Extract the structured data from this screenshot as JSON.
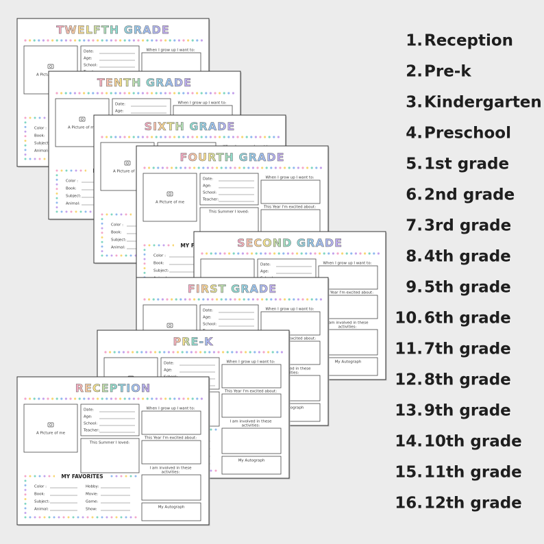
{
  "sheets": [
    {
      "title": "TWELFTH GRADE"
    },
    {
      "title": "TENTH GRADE"
    },
    {
      "title": "SIXTH GRADE"
    },
    {
      "title": "FOURTH GRADE"
    },
    {
      "title": "SECOND GRADE"
    },
    {
      "title": "FIRST GRADE"
    },
    {
      "title": "PRE-K"
    },
    {
      "title": "RECEPTION"
    }
  ],
  "sheet_labels": {
    "picture": "A Picture of me",
    "info": [
      "Date:",
      "Age:",
      "School:",
      "Teacher:"
    ],
    "summer": "This Summer I loved:",
    "grow_up": "When I grow up I want to:",
    "this_year": "This Year I'm excited about:",
    "involved": [
      "I am involved in these",
      "activities:"
    ],
    "autograph": "My Autograph",
    "favorites_title": "MY FAVORITES",
    "favorites_left": [
      "Color :",
      "Book:",
      "Subject:",
      "Animal:"
    ],
    "favorites_right": [
      "Hobby:",
      "Movie:",
      "Game:",
      "Show:"
    ]
  },
  "list": [
    {
      "number": "1.",
      "label": "Reception"
    },
    {
      "number": "2.",
      "label": "Pre-k"
    },
    {
      "number": "3.",
      "label": "Kindergarten"
    },
    {
      "number": "4.",
      "label": "Preschool"
    },
    {
      "number": "5.",
      "label": "1st grade"
    },
    {
      "number": "6.",
      "label": "2nd grade"
    },
    {
      "number": "7.",
      "label": "3rd grade"
    },
    {
      "number": "8.",
      "label": "4th grade"
    },
    {
      "number": "9.",
      "label": "5th grade"
    },
    {
      "number": "10.",
      "label": "6th grade"
    },
    {
      "number": "11.",
      "label": "7th grade"
    },
    {
      "number": "12.",
      "label": "8th grade"
    },
    {
      "number": "13.",
      "label": "9th grade"
    },
    {
      "number": "14.",
      "label": "10th grade"
    },
    {
      "number": "15.",
      "label": "11th grade"
    },
    {
      "number": "16.",
      "label": "12th grade"
    }
  ]
}
